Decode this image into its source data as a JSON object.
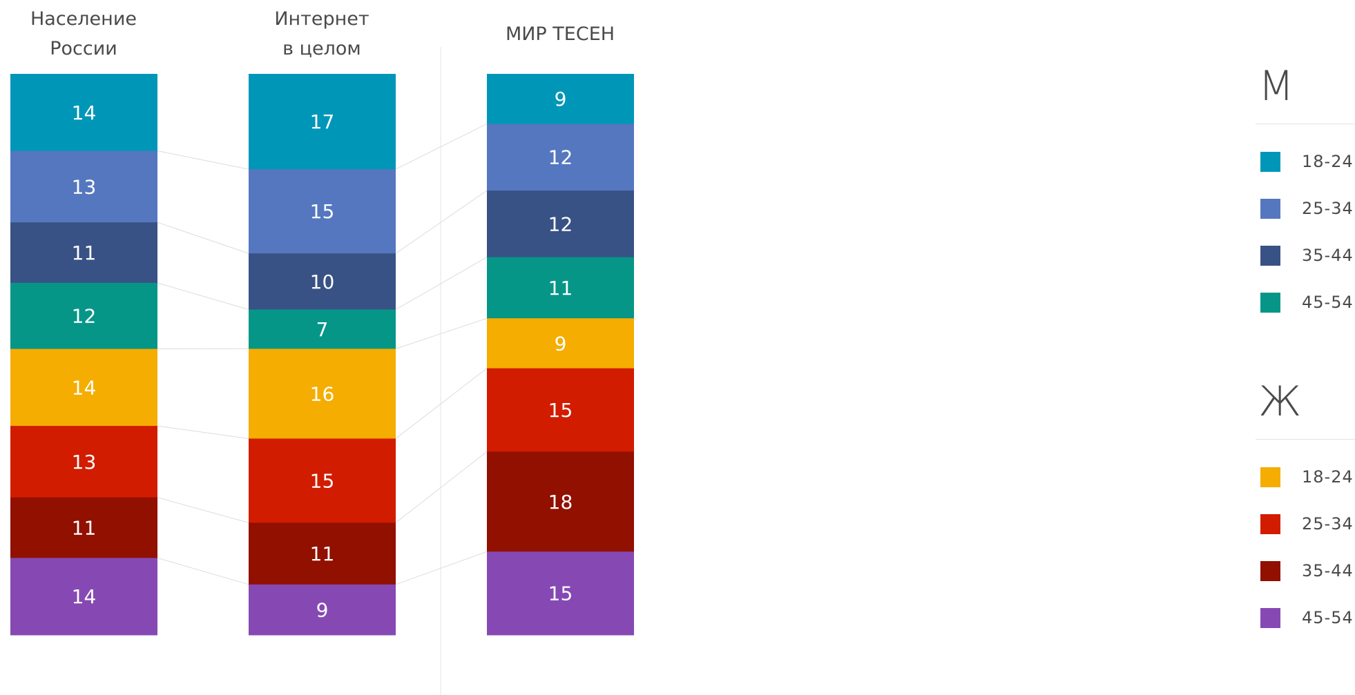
{
  "chart_data": {
    "type": "bar",
    "stacked": true,
    "categories": [
      "Население России",
      "Интернет в целом",
      "МИР ТЕСЕН"
    ],
    "category_titles": [
      [
        "Население",
        "России"
      ],
      [
        "Интернет",
        "в целом"
      ],
      [
        "МИР ТЕСЕН"
      ]
    ],
    "series": [
      {
        "group": "М",
        "name": "18-24",
        "color": "#0096b8",
        "values": [
          14,
          17,
          9
        ]
      },
      {
        "group": "М",
        "name": "25-34",
        "color": "#5577bf",
        "values": [
          13,
          15,
          12
        ]
      },
      {
        "group": "М",
        "name": "35-44",
        "color": "#395285",
        "values": [
          11,
          10,
          12
        ]
      },
      {
        "group": "М",
        "name": "45-54",
        "color": "#069688",
        "values": [
          12,
          7,
          11
        ]
      },
      {
        "group": "Ж",
        "name": "18-24",
        "color": "#f4ad00",
        "values": [
          14,
          16,
          9
        ]
      },
      {
        "group": "Ж",
        "name": "25-34",
        "color": "#d11c00",
        "values": [
          13,
          15,
          15
        ]
      },
      {
        "group": "Ж",
        "name": "35-44",
        "color": "#911000",
        "values": [
          11,
          11,
          18
        ]
      },
      {
        "group": "Ж",
        "name": "45-54",
        "color": "#8649b3",
        "values": [
          14,
          9,
          15
        ]
      }
    ],
    "legend": [
      {
        "title": "М",
        "items": [
          {
            "label": "18-24",
            "color": "#0096b8"
          },
          {
            "label": "25-34",
            "color": "#5577bf"
          },
          {
            "label": "35-44",
            "color": "#395285"
          },
          {
            "label": "45-54",
            "color": "#069688"
          }
        ]
      },
      {
        "title": "Ж",
        "items": [
          {
            "label": "18-24",
            "color": "#f4ad00"
          },
          {
            "label": "25-34",
            "color": "#d11c00"
          },
          {
            "label": "35-44",
            "color": "#911000"
          },
          {
            "label": "45-54",
            "color": "#8649b3"
          }
        ]
      }
    ],
    "legend_placement": "right",
    "grid": false
  }
}
